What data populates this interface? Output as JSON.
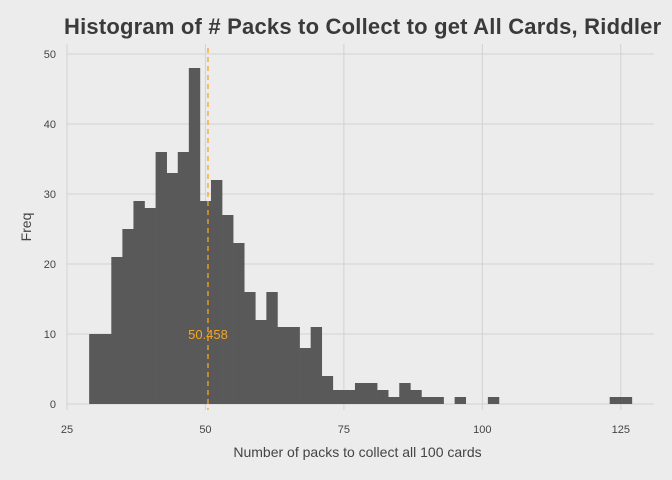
{
  "chart_data": {
    "type": "bar",
    "title": "Histogram of # Packs to Collect to get All Cards, Riddler",
    "xlabel": "Number of packs to collect all 100 cards",
    "ylabel": "Freq",
    "xlim": [
      25,
      131
    ],
    "ylim": [
      0,
      50
    ],
    "xticks": [
      25,
      50,
      75,
      100,
      125
    ],
    "yticks": [
      0,
      10,
      20,
      30,
      40,
      50
    ],
    "grid": true,
    "bin_width": 2,
    "bins": [
      {
        "x": 30,
        "count": 10
      },
      {
        "x": 32,
        "count": 10
      },
      {
        "x": 34,
        "count": 21
      },
      {
        "x": 36,
        "count": 25
      },
      {
        "x": 38,
        "count": 29
      },
      {
        "x": 40,
        "count": 28
      },
      {
        "x": 42,
        "count": 36
      },
      {
        "x": 44,
        "count": 33
      },
      {
        "x": 46,
        "count": 36
      },
      {
        "x": 48,
        "count": 48
      },
      {
        "x": 50,
        "count": 29
      },
      {
        "x": 52,
        "count": 32
      },
      {
        "x": 54,
        "count": 27
      },
      {
        "x": 56,
        "count": 23
      },
      {
        "x": 58,
        "count": 16
      },
      {
        "x": 60,
        "count": 12
      },
      {
        "x": 62,
        "count": 16
      },
      {
        "x": 64,
        "count": 11
      },
      {
        "x": 66,
        "count": 11
      },
      {
        "x": 68,
        "count": 8
      },
      {
        "x": 70,
        "count": 11
      },
      {
        "x": 72,
        "count": 4
      },
      {
        "x": 74,
        "count": 2
      },
      {
        "x": 76,
        "count": 2
      },
      {
        "x": 78,
        "count": 3
      },
      {
        "x": 80,
        "count": 3
      },
      {
        "x": 82,
        "count": 2
      },
      {
        "x": 84,
        "count": 1
      },
      {
        "x": 86,
        "count": 3
      },
      {
        "x": 88,
        "count": 2
      },
      {
        "x": 90,
        "count": 1
      },
      {
        "x": 92,
        "count": 1
      },
      {
        "x": 96,
        "count": 1
      },
      {
        "x": 102,
        "count": 1
      },
      {
        "x": 124,
        "count": 1
      },
      {
        "x": 126,
        "count": 1
      }
    ],
    "mean_line": {
      "value": 50.458,
      "label": "50.458"
    },
    "colors": {
      "background": "#ececec",
      "bars": "#595959",
      "grid": "#d2d2d2",
      "mean_line": "#f5a623"
    }
  }
}
